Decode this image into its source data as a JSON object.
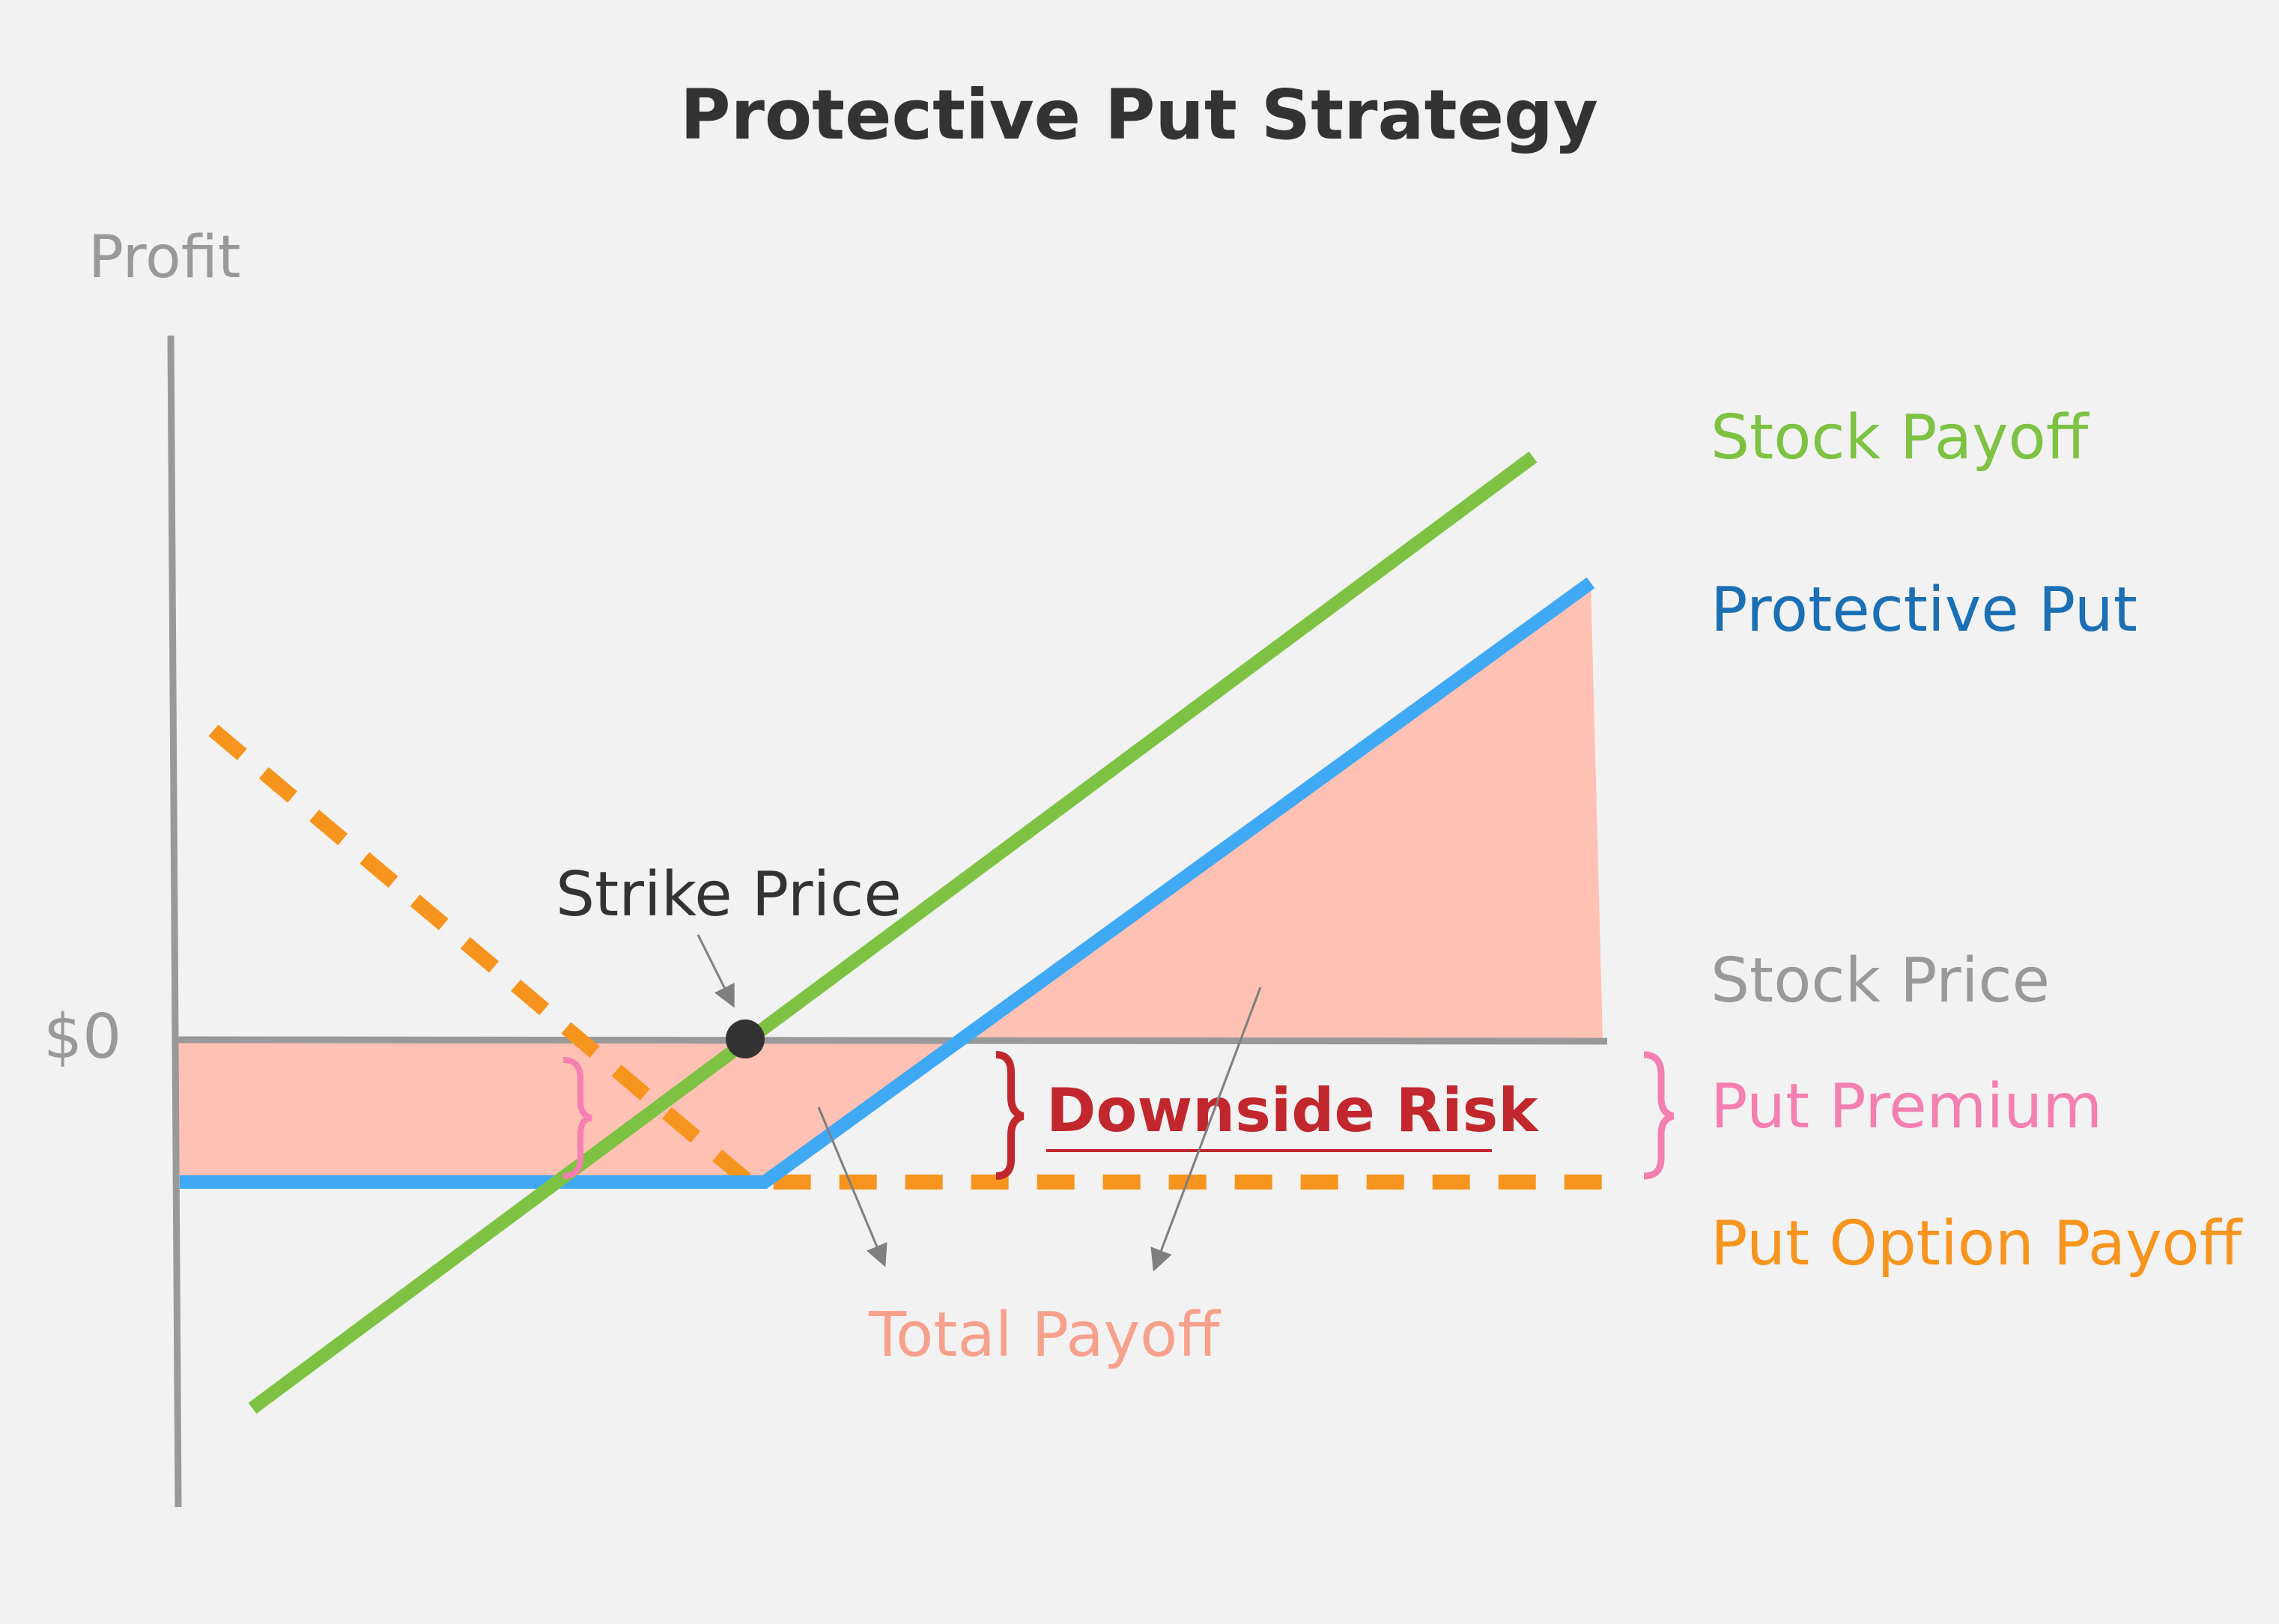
{
  "title": "Protective Put Strategy",
  "axis": {
    "y_label": "Profit",
    "zero_label": "$0"
  },
  "labels": {
    "strike_price": "Strike Price",
    "downside_risk": "Downside Risk",
    "total_payoff": "Total Payoff"
  },
  "legend": {
    "stock_payoff": "Stock Payoff",
    "protective_put": "Protective Put",
    "stock_price": "Stock Price",
    "put_premium": "Put Premium",
    "put_option_payoff": "Put Option Payoff"
  },
  "colors": {
    "background": "#f2f2f2",
    "title": "#333333",
    "axis": "#999999",
    "stock_payoff": "#7dc242",
    "protective_put": "#3fa9f5",
    "protective_put_label": "#1a6fb5",
    "put_option_payoff": "#f7941d",
    "put_premium": "#f47fb0",
    "downside_risk": "#c1272d",
    "total_payoff_fill": "#ffc1b3",
    "total_payoff_label": "#f7a08c",
    "marker": "#333333",
    "arrow": "#7f7f7f"
  }
}
